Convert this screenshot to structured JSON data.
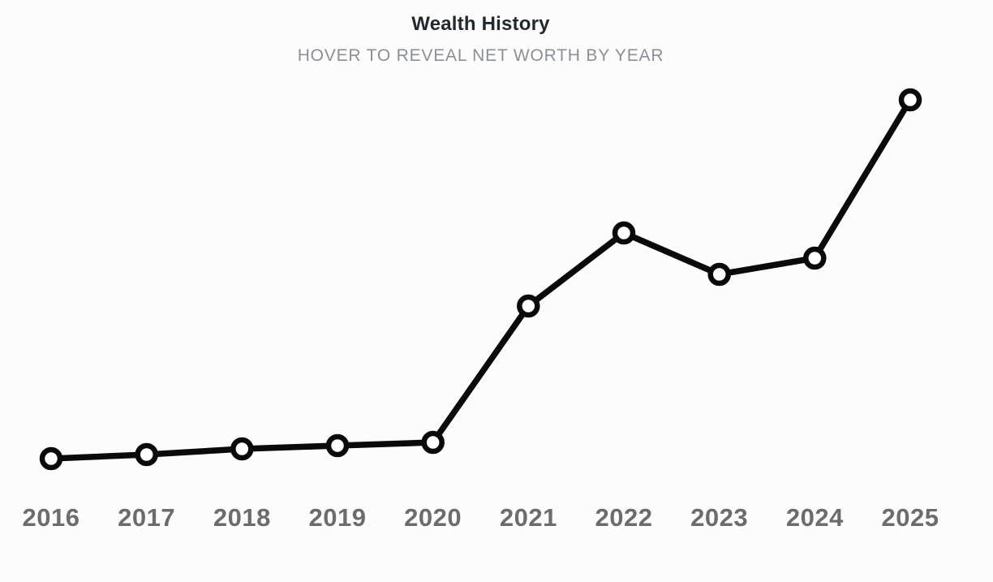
{
  "header": {
    "title": "Wealth History",
    "subtitle": "HOVER TO REVEAL NET WORTH BY YEAR"
  },
  "chart_data": {
    "type": "line",
    "title": "Wealth History",
    "subtitle": "HOVER TO REVEAL NET WORTH BY YEAR",
    "categories": [
      "2016",
      "2017",
      "2018",
      "2019",
      "2020",
      "2021",
      "2022",
      "2023",
      "2024",
      "2025"
    ],
    "series": [
      {
        "name": "Net worth by year",
        "values": [
          35,
          40,
          47,
          51,
          55,
          223,
          313,
          262,
          282,
          477
        ]
      }
    ],
    "xlabel": "",
    "ylabel": "",
    "value_note": "No y-axis, gridlines, or data labels visible; values are relative estimates read from marker pixel positions (hover reveals actual net worth in the live UI).",
    "grid": false,
    "legend": false,
    "axes_visible": false,
    "marker_style": "open-circle"
  },
  "style": {
    "background_color": "#fcfcfc",
    "line_color": "#0a0a0a",
    "marker_fill": "#ffffff",
    "marker_stroke": "#0a0a0a",
    "title_color": "#23272e",
    "subtitle_color": "#8b9096",
    "x_label_color": "#6c6c6e"
  }
}
